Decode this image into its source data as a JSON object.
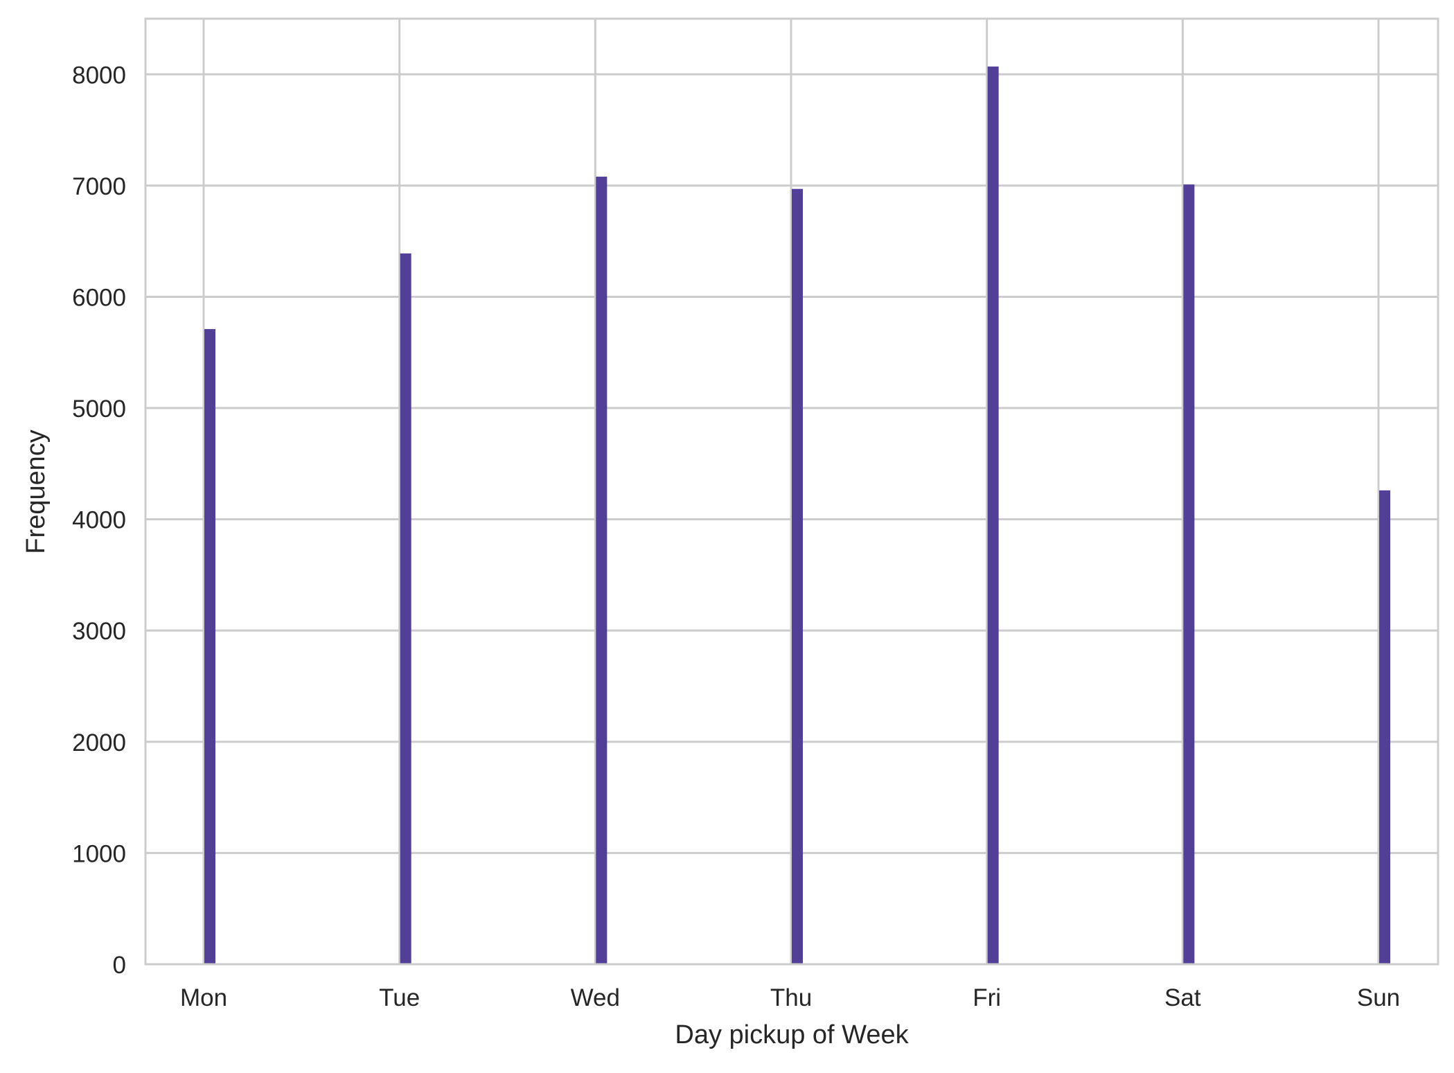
{
  "chart_data": {
    "type": "bar",
    "title": "",
    "xlabel": "Day pickup of Week",
    "ylabel": "Frequency",
    "categories": [
      "Mon",
      "Tue",
      "Wed",
      "Thu",
      "Fri",
      "Sat",
      "Sun"
    ],
    "values": [
      5710,
      6390,
      7080,
      6970,
      8070,
      7010,
      4260
    ],
    "ylim": [
      0,
      8500
    ],
    "yticks": [
      0,
      1000,
      2000,
      3000,
      4000,
      5000,
      6000,
      7000,
      8000
    ],
    "ytick_labels": [
      "0",
      "1000",
      "2000",
      "3000",
      "4000",
      "5000",
      "6000",
      "7000",
      "8000"
    ],
    "grid": true,
    "colors": {
      "bar": "#523F97",
      "grid": "#CCCCCC",
      "spine": "#CCCCCC",
      "text": "#262626"
    }
  }
}
